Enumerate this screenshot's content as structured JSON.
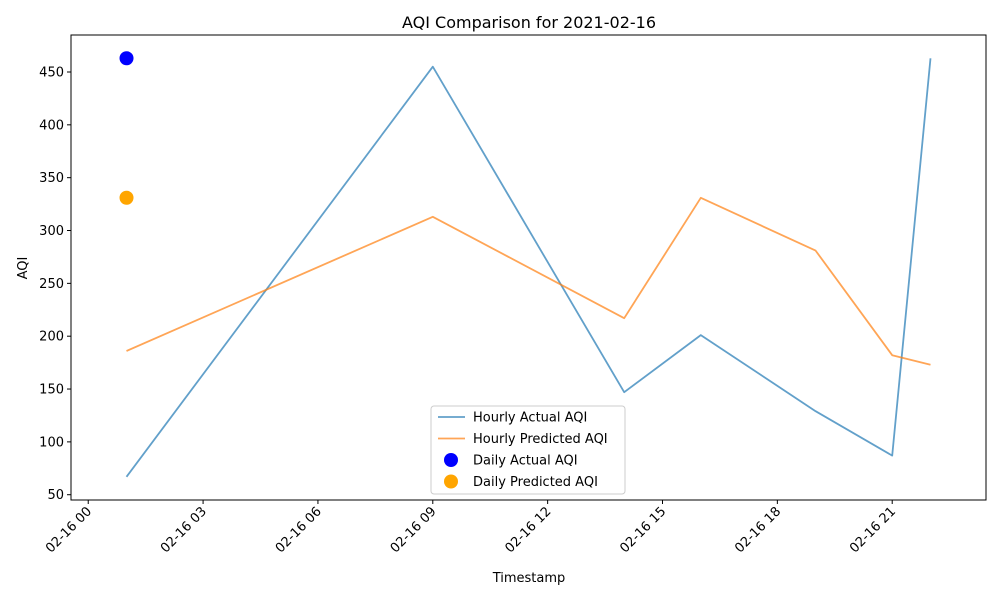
{
  "chart_data": {
    "type": "line",
    "title": "AQI Comparison for 2021-02-16",
    "xlabel": "Timestamp",
    "ylabel": "AQI",
    "xlim": [
      "2021-02-15 23:33",
      "2021-02-16 23:27"
    ],
    "ylim": [
      45,
      485
    ],
    "x_ticks": [
      {
        "t": "2021-02-16 00:00",
        "label": "02-16 00"
      },
      {
        "t": "2021-02-16 03:00",
        "label": "02-16 03"
      },
      {
        "t": "2021-02-16 06:00",
        "label": "02-16 06"
      },
      {
        "t": "2021-02-16 09:00",
        "label": "02-16 09"
      },
      {
        "t": "2021-02-16 12:00",
        "label": "02-16 12"
      },
      {
        "t": "2021-02-16 15:00",
        "label": "02-16 15"
      },
      {
        "t": "2021-02-16 18:00",
        "label": "02-16 18"
      },
      {
        "t": "2021-02-16 21:00",
        "label": "02-16 21"
      }
    ],
    "y_ticks": [
      50,
      100,
      150,
      200,
      250,
      300,
      350,
      400,
      450
    ],
    "grid": false,
    "legend_position": "bottom-center",
    "series": [
      {
        "name": "Hourly Actual AQI",
        "kind": "line",
        "color": "#1f77b4",
        "points": [
          {
            "t": "2021-02-16 01:00",
            "y": 67
          },
          {
            "t": "2021-02-16 09:00",
            "y": 455
          },
          {
            "t": "2021-02-16 14:00",
            "y": 147
          },
          {
            "t": "2021-02-16 16:00",
            "y": 201
          },
          {
            "t": "2021-02-16 19:00",
            "y": 129
          },
          {
            "t": "2021-02-16 21:00",
            "y": 87
          },
          {
            "t": "2021-02-16 22:00",
            "y": 463
          }
        ]
      },
      {
        "name": "Hourly Predicted AQI",
        "kind": "line",
        "color": "#ff7f0e",
        "points": [
          {
            "t": "2021-02-16 01:00",
            "y": 186
          },
          {
            "t": "2021-02-16 09:00",
            "y": 313
          },
          {
            "t": "2021-02-16 14:00",
            "y": 217
          },
          {
            "t": "2021-02-16 16:00",
            "y": 331
          },
          {
            "t": "2021-02-16 19:00",
            "y": 281
          },
          {
            "t": "2021-02-16 21:00",
            "y": 182
          },
          {
            "t": "2021-02-16 22:00",
            "y": 173
          }
        ]
      },
      {
        "name": "Daily Actual AQI",
        "kind": "scatter",
        "color": "#0000ff",
        "points": [
          {
            "t": "2021-02-16 01:00",
            "y": 463
          }
        ]
      },
      {
        "name": "Daily Predicted AQI",
        "kind": "scatter",
        "color": "#ffa500",
        "points": [
          {
            "t": "2021-02-16 01:00",
            "y": 331
          }
        ]
      }
    ]
  }
}
